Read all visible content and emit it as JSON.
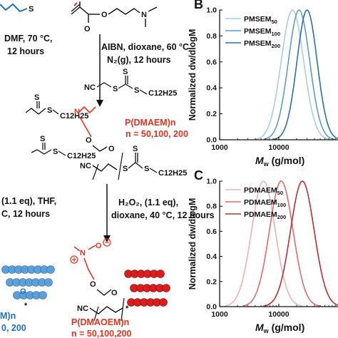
{
  "scheme": {
    "step1_conditions": [
      "DMF, 70 °C,",
      "12 hours"
    ],
    "step2_conditions": [
      "AIBN, dioxane, 60 °C",
      "N₂(g), 12 hours"
    ],
    "step3_conditions_left": [
      "(1.1 eq), THF,",
      "C, 12 hours"
    ],
    "step3_conditions_right": [
      "H₂O₂, (1.1 eq),",
      "dioxane, 40 °C, 12 hours"
    ],
    "polymer1_name": "P(DMAEM)n",
    "polymer1_n": "n = 50,100, 200",
    "polymer2_name": "P(DMAOEM)n",
    "polymer2_n": "n = 50,100,200",
    "left_bottom_n": "M)n",
    "left_bottom_vals": "0, 200",
    "chem_labels": {
      "c12h25": "C12H25",
      "nc": "NC",
      "s": "S",
      "o": "O",
      "n": "N",
      "star": "*"
    },
    "colors": {
      "red": "#e8321e",
      "blue": "#1f6fc4"
    }
  },
  "chart_data": [
    {
      "panel": "B",
      "type": "line",
      "xscale": "log",
      "xlim": [
        1000,
        100000
      ],
      "ylim": [
        0,
        1.0
      ],
      "xticks": [
        "1000",
        "10000"
      ],
      "yticks": [
        "0.0",
        "0.2",
        "0.4",
        "0.6",
        "0.8",
        "1.0"
      ],
      "xlabel": "Mw (g/mol)",
      "ylabel": "Normalized dw/dlogM",
      "legend_position": "top-left",
      "series": [
        {
          "name": "PMSEM50",
          "color": "#a9cce6",
          "peak_x": 17000,
          "width": 0.19,
          "x": [
            3000,
            6000,
            10000,
            14000,
            17000,
            22000,
            30000,
            40000
          ],
          "y": [
            0.02,
            0.2,
            0.62,
            0.94,
            1.0,
            0.86,
            0.45,
            0.15
          ]
        },
        {
          "name": "PMSEM100",
          "color": "#5b9bd0",
          "peak_x": 22000,
          "width": 0.18,
          "x": [
            5000,
            9000,
            14000,
            18000,
            22000,
            30000,
            40000,
            55000
          ],
          "y": [
            0.04,
            0.25,
            0.66,
            0.93,
            1.0,
            0.83,
            0.46,
            0.14
          ]
        },
        {
          "name": "PMSEM200",
          "color": "#2a6eb0",
          "peak_x": 30000,
          "width": 0.17,
          "x": [
            7000,
            12000,
            18000,
            24000,
            30000,
            38000,
            50000,
            65000
          ],
          "y": [
            0.03,
            0.22,
            0.63,
            0.92,
            1.0,
            0.84,
            0.44,
            0.12
          ]
        }
      ]
    },
    {
      "panel": "C",
      "type": "line",
      "xscale": "log",
      "xlim": [
        1000,
        100000
      ],
      "ylim": [
        0,
        1.0
      ],
      "xticks": [
        "1000",
        "10000"
      ],
      "yticks": [
        "0.0",
        "0.2",
        "0.4",
        "0.6",
        "0.8",
        "1.0"
      ],
      "xlabel": "Mw (g/mol)",
      "ylabel": "Normalized dw/dlogM",
      "legend_position": "top-left",
      "series": [
        {
          "name": "PDMAEM50",
          "color": "#f2b0b0",
          "peak_x": 5500,
          "width": 0.2,
          "x": [
            1200,
            2000,
            3000,
            4200,
            5500,
            8000,
            12000,
            18000
          ],
          "y": [
            0.02,
            0.14,
            0.45,
            0.85,
            1.0,
            0.78,
            0.32,
            0.08
          ]
        },
        {
          "name": "PDMAEM100",
          "color": "#e06a6a",
          "peak_x": 11000,
          "width": 0.2,
          "x": [
            2500,
            4000,
            6000,
            8500,
            11000,
            15000,
            22000,
            35000
          ],
          "y": [
            0.02,
            0.14,
            0.45,
            0.85,
            1.0,
            0.8,
            0.34,
            0.07
          ]
        },
        {
          "name": "PDMAEM200",
          "color": "#c22b2b",
          "peak_x": 25000,
          "width": 0.2,
          "x": [
            6000,
            9000,
            13000,
            19000,
            25000,
            34000,
            50000,
            80000
          ],
          "y": [
            0.03,
            0.15,
            0.44,
            0.86,
            1.0,
            0.8,
            0.34,
            0.07
          ]
        }
      ]
    }
  ]
}
